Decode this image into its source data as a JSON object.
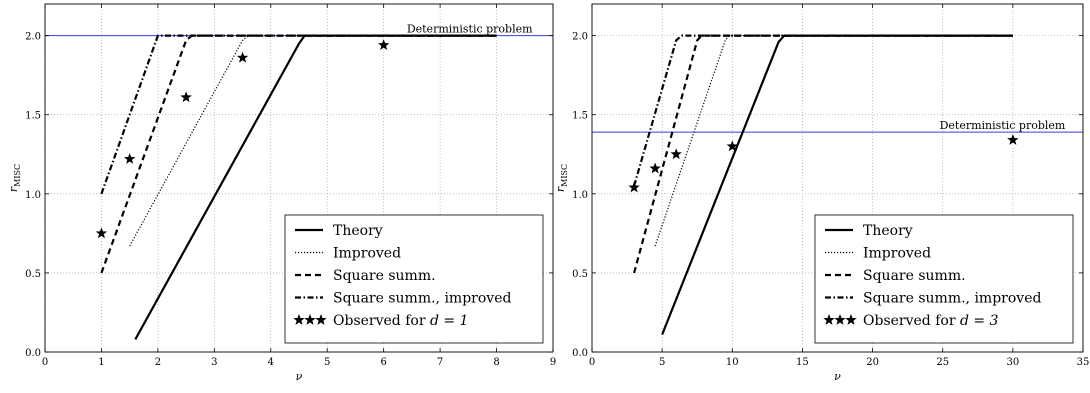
{
  "chart_data": [
    {
      "type": "line",
      "xlabel": "ν",
      "ylabel": "r",
      "ylabel_sub": "MISC",
      "xlim": [
        0,
        9
      ],
      "ylim": [
        0,
        2.2
      ],
      "xticks": [
        0,
        1,
        2,
        3,
        4,
        5,
        6,
        7,
        8,
        9
      ],
      "yticks": [
        0.0,
        0.5,
        1.0,
        1.5,
        2.0
      ],
      "grid": true,
      "legend_position": "bottom-right",
      "hline": {
        "y": 2.0,
        "label": "Deterministic problem",
        "color": "#3b3bd8"
      },
      "series": [
        {
          "name": "Theory",
          "style": "solid",
          "x": [
            1.6,
            4.5,
            4.6,
            8
          ],
          "y": [
            0.08,
            1.95,
            2.0,
            2.0
          ]
        },
        {
          "name": "Improved",
          "style": "dotted",
          "x": [
            1.5,
            3.5,
            3.6,
            8
          ],
          "y": [
            0.67,
            1.97,
            2.0,
            2.0
          ]
        },
        {
          "name": "Square summ.",
          "style": "dashed",
          "x": [
            1.0,
            2.5,
            2.6,
            8
          ],
          "y": [
            0.5,
            1.97,
            2.0,
            2.0
          ]
        },
        {
          "name": "Square summ., improved",
          "style": "dashdot",
          "x": [
            1.0,
            2.0,
            2.1,
            8
          ],
          "y": [
            1.0,
            2.0,
            2.0,
            2.0
          ]
        }
      ],
      "observed": {
        "label_prefix": "Observed for",
        "label_var": "d = 1",
        "x": [
          1.0,
          1.5,
          2.5,
          3.5,
          6.0
        ],
        "y": [
          0.75,
          1.22,
          1.61,
          1.86,
          1.94
        ]
      }
    },
    {
      "type": "line",
      "xlabel": "ν",
      "ylabel": "r",
      "ylabel_sub": "MISC",
      "xlim": [
        0,
        35
      ],
      "ylim": [
        0,
        2.2
      ],
      "xticks": [
        0,
        5,
        10,
        15,
        20,
        25,
        30,
        35
      ],
      "yticks": [
        0.0,
        0.5,
        1.0,
        1.5,
        2.0
      ],
      "grid": true,
      "legend_position": "bottom-right",
      "hline": {
        "y": 1.39,
        "label": "Deterministic problem",
        "color": "#3b3bd8"
      },
      "series": [
        {
          "name": "Theory",
          "style": "solid",
          "x": [
            5,
            13.3,
            13.7,
            30
          ],
          "y": [
            0.11,
            1.96,
            2.0,
            2.0
          ]
        },
        {
          "name": "Improved",
          "style": "dotted",
          "x": [
            4.5,
            9.5,
            9.8,
            30
          ],
          "y": [
            0.67,
            1.97,
            2.0,
            2.0
          ]
        },
        {
          "name": "Square summ.",
          "style": "dashed",
          "x": [
            3,
            7.5,
            7.8,
            30
          ],
          "y": [
            0.5,
            1.97,
            2.0,
            2.0
          ]
        },
        {
          "name": "Square summ., improved",
          "style": "dashdot",
          "x": [
            3,
            6,
            6.4,
            30
          ],
          "y": [
            1.05,
            1.97,
            2.0,
            2.0
          ]
        }
      ],
      "observed": {
        "label_prefix": "Observed for",
        "label_var": "d = 3",
        "x": [
          3,
          4.5,
          6,
          10,
          30
        ],
        "y": [
          1.04,
          1.16,
          1.25,
          1.3,
          1.34
        ]
      }
    }
  ]
}
